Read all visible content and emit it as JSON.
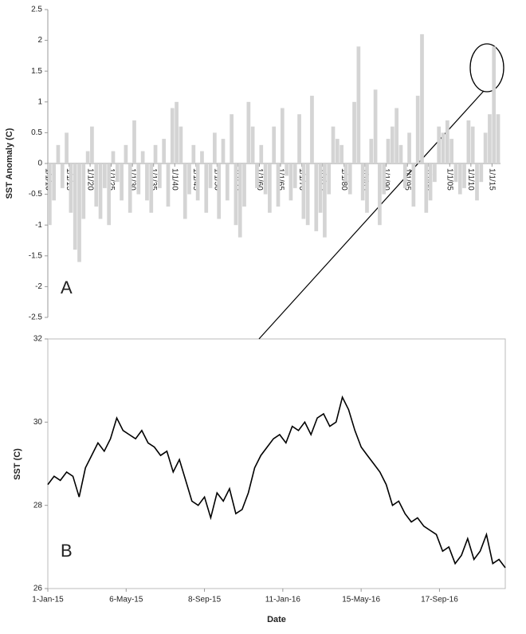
{
  "chart_data": [
    {
      "type": "bar",
      "label": "A",
      "ylabel": "SST Anomaly (C)",
      "color": "#d4d4d4",
      "x": [
        "1910-01-01",
        "1911-01-01",
        "1912-01-01",
        "1913-01-01",
        "1914-01-01",
        "1915-01-01",
        "1916-01-01",
        "1917-01-01",
        "1918-01-01",
        "1919-01-01",
        "1920-01-01",
        "1921-01-01",
        "1922-01-01",
        "1923-01-01",
        "1924-01-01",
        "1925-01-01",
        "1926-01-01",
        "1927-01-01",
        "1928-01-01",
        "1929-01-01",
        "1930-01-01",
        "1931-01-01",
        "1932-01-01",
        "1933-01-01",
        "1934-01-01",
        "1935-01-01",
        "1936-01-01",
        "1937-01-01",
        "1938-01-01",
        "1939-01-01",
        "1940-01-01",
        "1941-01-01",
        "1942-01-01",
        "1943-01-01",
        "1944-01-01",
        "1945-01-01",
        "1946-01-01",
        "1947-01-01",
        "1948-01-01",
        "1949-01-01",
        "1950-01-01",
        "1951-01-01",
        "1952-01-01",
        "1953-01-01",
        "1954-01-01",
        "1955-01-01",
        "1956-01-01",
        "1957-01-01",
        "1958-01-01",
        "1959-01-01",
        "1960-01-01",
        "1961-01-01",
        "1962-01-01",
        "1963-01-01",
        "1964-01-01",
        "1965-01-01",
        "1966-01-01",
        "1967-01-01",
        "1968-01-01",
        "1969-01-01",
        "1970-01-01",
        "1971-01-01",
        "1972-01-01",
        "1973-01-01",
        "1974-01-01",
        "1975-01-01",
        "1976-01-01",
        "1977-01-01",
        "1978-01-01",
        "1979-01-01",
        "1980-01-01",
        "1981-01-01",
        "1982-01-01",
        "1983-01-01",
        "1984-01-01",
        "1985-01-01",
        "1986-01-01",
        "1987-01-01",
        "1988-01-01",
        "1989-01-01",
        "1990-01-01",
        "1991-01-01",
        "1992-01-01",
        "1993-01-01",
        "1994-01-01",
        "1995-01-01",
        "1996-01-01",
        "1997-01-01",
        "1998-01-01",
        "1999-01-01",
        "2000-01-01",
        "2001-01-01",
        "2002-01-01",
        "2003-01-01",
        "2004-01-01",
        "2005-01-01",
        "2006-01-01",
        "2007-01-01",
        "2008-01-01",
        "2009-01-01",
        "2010-01-01",
        "2011-01-01",
        "2012-01-01",
        "2013-01-01",
        "2014-01-01",
        "2015-01-01",
        "2016-01-01"
      ],
      "values": [
        -1.0,
        -0.6,
        0.3,
        -0.4,
        0.5,
        -0.8,
        -1.4,
        -1.6,
        -0.9,
        0.2,
        0.6,
        -0.7,
        -0.9,
        -0.4,
        -1.0,
        0.2,
        -0.3,
        -0.6,
        0.3,
        -0.8,
        0.7,
        -0.5,
        0.2,
        -0.6,
        -0.8,
        0.3,
        -0.4,
        0.4,
        -0.7,
        0.9,
        1.0,
        0.6,
        -0.9,
        -0.5,
        0.3,
        -0.6,
        0.2,
        -0.8,
        -0.4,
        0.5,
        -0.9,
        0.4,
        -0.6,
        0.8,
        -1.0,
        -1.2,
        -0.7,
        1.0,
        0.6,
        -0.4,
        0.3,
        -0.5,
        -0.8,
        0.6,
        -0.7,
        0.9,
        -0.2,
        -0.6,
        -0.4,
        0.8,
        -0.9,
        -1.0,
        1.1,
        -1.1,
        -0.8,
        -1.2,
        -0.5,
        0.6,
        0.4,
        0.3,
        -0.3,
        -0.5,
        1.0,
        1.9,
        -0.6,
        -0.8,
        0.4,
        1.2,
        -1.0,
        -0.5,
        0.4,
        0.6,
        0.9,
        0.3,
        -0.4,
        0.5,
        -0.7,
        1.1,
        2.1,
        -0.8,
        -0.6,
        -0.3,
        0.6,
        0.5,
        0.7,
        0.4,
        -0.3,
        -0.5,
        -0.4,
        0.7,
        0.6,
        -0.6,
        -0.3,
        0.5,
        0.8,
        1.9,
        0.8
      ],
      "xlim": [
        "1910-01-01",
        "2017-01-01"
      ],
      "xticks": [
        {
          "value": "1910-01-01",
          "label": "1/1/10"
        },
        {
          "value": "1915-01-01",
          "label": "1/1/15"
        },
        {
          "value": "1920-01-01",
          "label": "1/1/20"
        },
        {
          "value": "1925-01-01",
          "label": "1/1/25"
        },
        {
          "value": "1930-01-01",
          "label": "1/1/30"
        },
        {
          "value": "1935-01-01",
          "label": "1/1/35"
        },
        {
          "value": "1940-01-01",
          "label": "1/1/40"
        },
        {
          "value": "1945-01-01",
          "label": "1/1/45"
        },
        {
          "value": "1950-01-01",
          "label": "1/1/50"
        },
        {
          "value": "1955-01-01",
          "label": "1/1/55"
        },
        {
          "value": "1960-01-01",
          "label": "1/1/60"
        },
        {
          "value": "1965-01-01",
          "label": "1/1/65"
        },
        {
          "value": "1970-01-01",
          "label": "1/1/70"
        },
        {
          "value": "1975-01-01",
          "label": "1/1/75"
        },
        {
          "value": "1980-01-01",
          "label": "1/1/80"
        },
        {
          "value": "1985-01-01",
          "label": "1/1/85"
        },
        {
          "value": "1990-01-01",
          "label": "1/1/90"
        },
        {
          "value": "1995-01-01",
          "label": "1/1/95"
        },
        {
          "value": "2000-01-01",
          "label": "1/1/00"
        },
        {
          "value": "2005-01-01",
          "label": "1/1/05"
        },
        {
          "value": "2010-01-01",
          "label": "1/1/10"
        },
        {
          "value": "2015-01-01",
          "label": "1/1/15"
        }
      ],
      "ylim": [
        -2.5,
        2.5
      ],
      "yticks": [
        -2.5,
        -2,
        -1.5,
        -1,
        -0.5,
        0,
        0.5,
        1,
        1.5,
        2,
        2.5
      ]
    },
    {
      "type": "line",
      "label": "B",
      "xlabel": "Date",
      "ylabel": "SST (C)",
      "color": "#000000",
      "x": [
        "2015-01-01",
        "2015-01-11",
        "2015-01-21",
        "2015-01-31",
        "2015-02-10",
        "2015-02-20",
        "2015-03-02",
        "2015-03-12",
        "2015-03-22",
        "2015-04-01",
        "2015-04-11",
        "2015-04-21",
        "2015-05-01",
        "2015-05-11",
        "2015-05-21",
        "2015-05-31",
        "2015-06-10",
        "2015-06-20",
        "2015-06-30",
        "2015-07-10",
        "2015-07-20",
        "2015-07-30",
        "2015-08-09",
        "2015-08-19",
        "2015-08-29",
        "2015-09-08",
        "2015-09-18",
        "2015-09-28",
        "2015-10-08",
        "2015-10-18",
        "2015-10-28",
        "2015-11-07",
        "2015-11-17",
        "2015-11-27",
        "2015-12-07",
        "2015-12-17",
        "2015-12-27",
        "2016-01-06",
        "2016-01-16",
        "2016-01-26",
        "2016-02-05",
        "2016-02-15",
        "2016-02-25",
        "2016-03-06",
        "2016-03-16",
        "2016-03-26",
        "2016-04-05",
        "2016-04-15",
        "2016-04-25",
        "2016-05-05",
        "2016-05-15",
        "2016-05-25",
        "2016-06-04",
        "2016-06-14",
        "2016-06-24",
        "2016-07-04",
        "2016-07-14",
        "2016-07-24",
        "2016-08-03",
        "2016-08-13",
        "2016-08-23",
        "2016-09-02",
        "2016-09-12",
        "2016-09-22",
        "2016-10-02",
        "2016-10-12",
        "2016-10-22",
        "2016-11-01",
        "2016-11-11",
        "2016-11-21",
        "2016-12-01",
        "2016-12-11",
        "2016-12-21",
        "2016-12-31"
      ],
      "values": [
        28.5,
        28.7,
        28.6,
        28.8,
        28.7,
        28.2,
        28.9,
        29.2,
        29.5,
        29.3,
        29.6,
        30.1,
        29.8,
        29.7,
        29.6,
        29.8,
        29.5,
        29.4,
        29.2,
        29.3,
        28.8,
        29.1,
        28.6,
        28.1,
        28.0,
        28.2,
        27.7,
        28.3,
        28.1,
        28.4,
        27.8,
        27.9,
        28.3,
        28.9,
        29.2,
        29.4,
        29.6,
        29.7,
        29.5,
        29.9,
        29.8,
        30.0,
        29.7,
        30.1,
        30.2,
        29.9,
        30.0,
        30.6,
        30.3,
        29.8,
        29.4,
        29.2,
        29.0,
        28.8,
        28.5,
        28.0,
        28.1,
        27.8,
        27.6,
        27.7,
        27.5,
        27.4,
        27.3,
        26.9,
        27.0,
        26.6,
        26.8,
        27.2,
        26.7,
        26.9,
        27.3,
        26.6,
        26.7,
        26.5
      ],
      "xlim": [
        "2015-01-01",
        "2016-12-31"
      ],
      "xticks": [
        {
          "value": "2015-01-01",
          "label": "1-Jan-15"
        },
        {
          "value": "2015-05-06",
          "label": "6-May-15"
        },
        {
          "value": "2015-09-08",
          "label": "8-Sep-15"
        },
        {
          "value": "2016-01-11",
          "label": "11-Jan-16"
        },
        {
          "value": "2016-05-15",
          "label": "15-May-16"
        },
        {
          "value": "2016-09-17",
          "label": "17-Sep-16"
        }
      ],
      "ylim": [
        26,
        32
      ],
      "yticks": [
        26,
        28,
        30,
        32
      ]
    }
  ]
}
